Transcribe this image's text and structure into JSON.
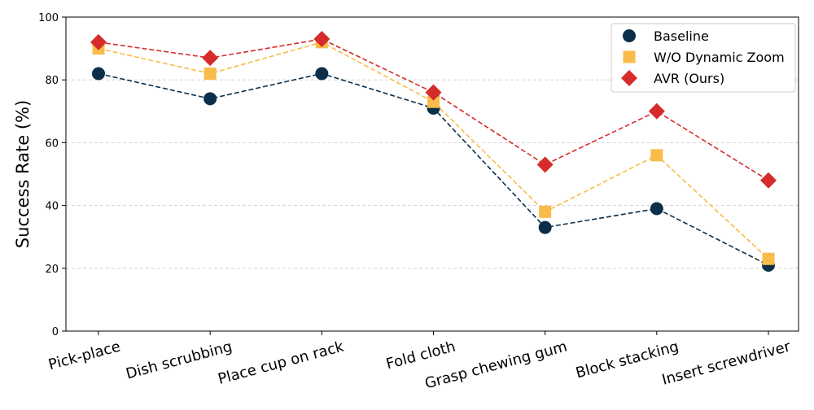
{
  "chart_data": {
    "type": "line",
    "title": "",
    "xlabel": "",
    "ylabel": "Success Rate (%)",
    "ylim": [
      0,
      100
    ],
    "yticks": [
      0,
      20,
      40,
      60,
      80,
      100
    ],
    "grid": "horizontal-dashed",
    "legend_position": "top-right",
    "categories": [
      "Pick-place",
      "Dish scrubbing",
      "Place cup on rack",
      "Fold cloth",
      "Grasp chewing gum",
      "Block stacking",
      "Insert screwdriver"
    ],
    "series": [
      {
        "name": "Baseline",
        "color": "#0b2f4a",
        "marker": "circle",
        "values": [
          82,
          74,
          82,
          71,
          33,
          39,
          21
        ]
      },
      {
        "name": "W/O Dynamic Zoom",
        "color": "#f8bc4a",
        "marker": "square",
        "values": [
          90,
          82,
          92,
          73,
          38,
          56,
          23
        ]
      },
      {
        "name": "AVR (Ours)",
        "color": "#d62b2b",
        "marker": "diamond",
        "values": [
          92,
          87,
          93,
          76,
          53,
          70,
          48
        ]
      }
    ]
  }
}
